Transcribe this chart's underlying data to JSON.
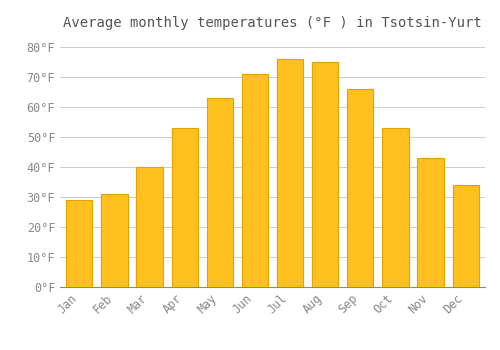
{
  "title": "Average monthly temperatures (°F ) in Tsotsin-Yurt",
  "months": [
    "Jan",
    "Feb",
    "Mar",
    "Apr",
    "May",
    "Jun",
    "Jul",
    "Aug",
    "Sep",
    "Oct",
    "Nov",
    "Dec"
  ],
  "values": [
    29,
    31,
    40,
    53,
    63,
    71,
    76,
    75,
    66,
    53,
    43,
    34
  ],
  "bar_color_face": "#FFC020",
  "bar_color_edge": "#E8A000",
  "background_color": "#FFFFFF",
  "grid_color": "#CCCCCC",
  "ylim": [
    0,
    84
  ],
  "yticks": [
    0,
    10,
    20,
    30,
    40,
    50,
    60,
    70,
    80
  ],
  "ytick_labels": [
    "0°F",
    "10°F",
    "20°F",
    "30°F",
    "40°F",
    "50°F",
    "60°F",
    "70°F",
    "80°F"
  ],
  "title_fontsize": 10,
  "tick_fontsize": 8.5,
  "tick_font_color": "#888888",
  "title_font_color": "#555555"
}
